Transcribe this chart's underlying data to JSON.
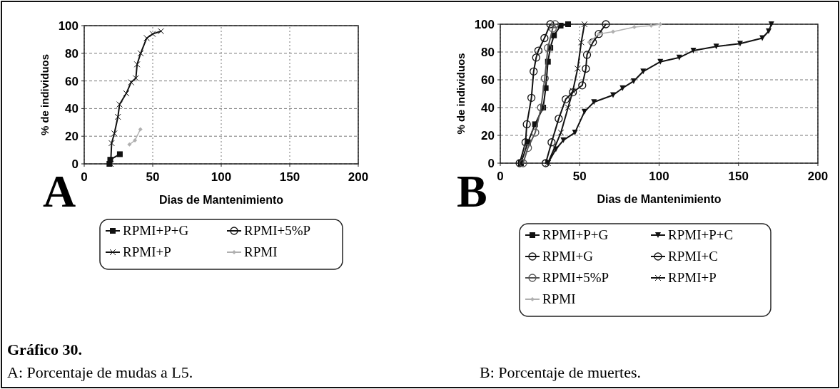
{
  "chart_data": [
    {
      "type": "line",
      "xlabel": "Dias de Mantenimiento",
      "ylabel": "% de individuos",
      "xlim": [
        0,
        200
      ],
      "ylim": [
        0,
        100
      ],
      "xticks": [
        0,
        50,
        100,
        150,
        200
      ],
      "yticks": [
        0,
        20,
        40,
        60,
        80,
        100
      ],
      "grid": true,
      "legend": "bottom",
      "line_style": "solid",
      "annotations": [
        "A",
        "Gráfico 30.",
        "A: Porcentaje de mudas a L5."
      ],
      "series": [
        {
          "name": "RPMI+P+G",
          "color": "#111111",
          "marker": "square",
          "x": [
            18.4,
            19,
            26
          ],
          "values": [
            0,
            3,
            7
          ]
        },
        {
          "name": "RPMI+5%P",
          "color": "#111111",
          "marker": "circle"
        },
        {
          "name": "RPMI+P",
          "color": "#111111",
          "marker": "cross",
          "x": [
            19.3,
            20,
            22,
            24.6,
            25.8,
            30.7,
            34.2,
            37.7,
            38.6,
            41.2,
            45.6,
            50,
            56
          ],
          "values": [
            0,
            15,
            22,
            34,
            43,
            51,
            59,
            62,
            72,
            80,
            91,
            94,
            96
          ]
        },
        {
          "name": "RPMI",
          "color": "#b0b0b0",
          "marker": "diamond",
          "x": [
            33,
            37,
            41
          ],
          "values": [
            14,
            17,
            25
          ]
        }
      ]
    },
    {
      "type": "line",
      "xlabel": "Dias de Mantenimiento",
      "ylabel": "% de individuos",
      "xlim": [
        0,
        200
      ],
      "ylim": [
        0,
        100
      ],
      "xticks": [
        0,
        50,
        100,
        150,
        200
      ],
      "yticks": [
        0,
        20,
        40,
        60,
        80,
        100
      ],
      "grid": true,
      "legend": "bottom",
      "line_style": "solid",
      "annotations": [
        "B",
        "B: Porcentaje de muertes."
      ],
      "series": [
        {
          "name": "RPMI+P+G",
          "color": "#111111",
          "marker": "square",
          "x": [
            13,
            17.4,
            21.9,
            27,
            28.6,
            30,
            31.5,
            33.8,
            38,
            42.7
          ],
          "values": [
            0,
            15,
            28,
            40,
            54,
            73,
            83,
            92,
            99,
            100
          ]
        },
        {
          "name": "RPMI+P+C",
          "color": "#111111",
          "marker": "triangle",
          "x": [
            30,
            35,
            39.7,
            47,
            53,
            59,
            71,
            77,
            84,
            90,
            100.8,
            112.7,
            121.6,
            136,
            151,
            165,
            169,
            170.7
          ],
          "values": [
            0,
            10,
            16.5,
            22,
            37,
            44,
            49,
            54,
            59,
            66,
            73,
            76,
            81,
            84,
            86,
            90,
            95,
            100
          ]
        },
        {
          "name": "RPMI+G",
          "color": "#111111",
          "marker": "circle",
          "x": [
            12.2,
            15.9,
            16.7,
            19.6,
            21,
            22.6,
            24,
            27.8,
            31.5
          ],
          "values": [
            0,
            15,
            28,
            47,
            66,
            76,
            81,
            90,
            100
          ]
        },
        {
          "name": "RPMI+C",
          "color": "#111111",
          "marker": "circle",
          "x": [
            28.6,
            32.3,
            36.8,
            41.2,
            45.7,
            51.6,
            53.9,
            54.6,
            58.3,
            62,
            66.5
          ],
          "values": [
            0,
            15,
            32,
            46,
            51,
            56,
            68,
            78,
            87,
            93,
            100
          ]
        },
        {
          "name": "RPMI+5%P",
          "color": "#555555",
          "marker": "circle",
          "x": [
            14.4,
            17.4,
            22,
            25.7,
            28,
            30,
            33,
            34.5
          ],
          "values": [
            0,
            11,
            22,
            40,
            61,
            83,
            97,
            100
          ]
        },
        {
          "name": "RPMI+P",
          "color": "#111111",
          "marker": "cross",
          "x": [
            30,
            38.2,
            42.7,
            45.7,
            48.7,
            51,
            53
          ],
          "values": [
            0,
            22,
            40,
            52,
            68,
            87,
            100
          ]
        },
        {
          "name": "RPMI",
          "color": "#b0b0b0",
          "marker": "diamond",
          "x": [
            56,
            62,
            71,
            84.4,
            95,
            100.8
          ],
          "values": [
            87,
            93,
            94.6,
            98,
            99,
            100
          ]
        }
      ]
    }
  ]
}
